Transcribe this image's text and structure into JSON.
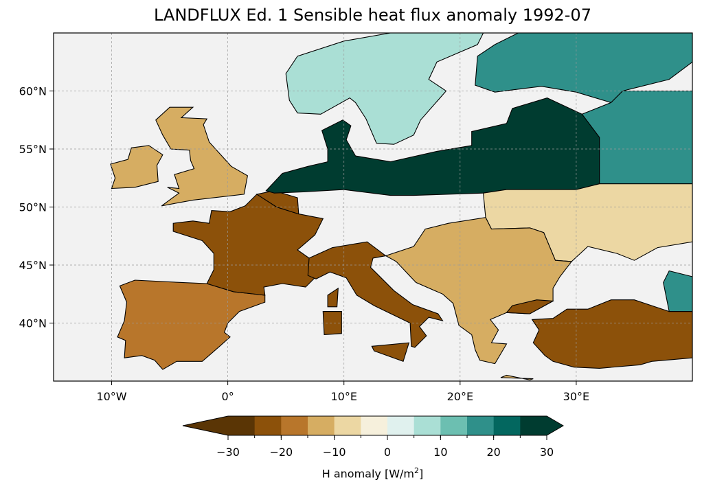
{
  "title": "LANDFLUX Ed. 1 Sensible heat flux anomaly 1992-07",
  "map": {
    "lon_range": [
      -15,
      40
    ],
    "lat_range": [
      35,
      65
    ],
    "lon_ticks": [
      {
        "value": -10,
        "label": "10°W"
      },
      {
        "value": 0,
        "label": "0°"
      },
      {
        "value": 10,
        "label": "10°E"
      },
      {
        "value": 20,
        "label": "20°E"
      },
      {
        "value": 30,
        "label": "30°E"
      }
    ],
    "lat_ticks": [
      {
        "value": 40,
        "label": "40°N"
      },
      {
        "value": 45,
        "label": "45°N"
      },
      {
        "value": 50,
        "label": "50°N"
      },
      {
        "value": 55,
        "label": "55°N"
      },
      {
        "value": 60,
        "label": "60°N"
      }
    ],
    "ocean_color": "#f2f2f2",
    "grid": true,
    "anomaly_regions": [
      {
        "name": "France",
        "value": -22
      },
      {
        "name": "Iberia",
        "value": -18
      },
      {
        "name": "Italy",
        "value": -24
      },
      {
        "name": "Britain",
        "value": -15
      },
      {
        "name": "Poland / Belarus",
        "value": 26
      },
      {
        "name": "Scandinavia",
        "value": 5
      },
      {
        "name": "Northwest Russia",
        "value": 15
      },
      {
        "name": "Anatolia",
        "value": -25
      },
      {
        "name": "Balkans",
        "value": -15
      },
      {
        "name": "Ukraine",
        "value": -6
      }
    ]
  },
  "colorbar": {
    "label_prefix": "H anomaly [W/m",
    "label_sup": "2",
    "label_suffix": "]",
    "levels": [
      -30,
      -25,
      -20,
      -15,
      -10,
      -5,
      0,
      5,
      10,
      15,
      20,
      25,
      30
    ],
    "tick_values": [
      -30,
      -20,
      -10,
      0,
      10,
      20,
      30
    ],
    "tick_labels": [
      "−30",
      "−20",
      "−10",
      "0",
      "10",
      "20",
      "30"
    ],
    "colors": [
      "#5a3505",
      "#8c510a",
      "#b8762b",
      "#d6ad62",
      "#ecd7a3",
      "#f6f0dc",
      "#e0f1ee",
      "#aadfd5",
      "#6cbfb1",
      "#2f908a",
      "#03675f",
      "#003c30"
    ],
    "extend": "both"
  }
}
